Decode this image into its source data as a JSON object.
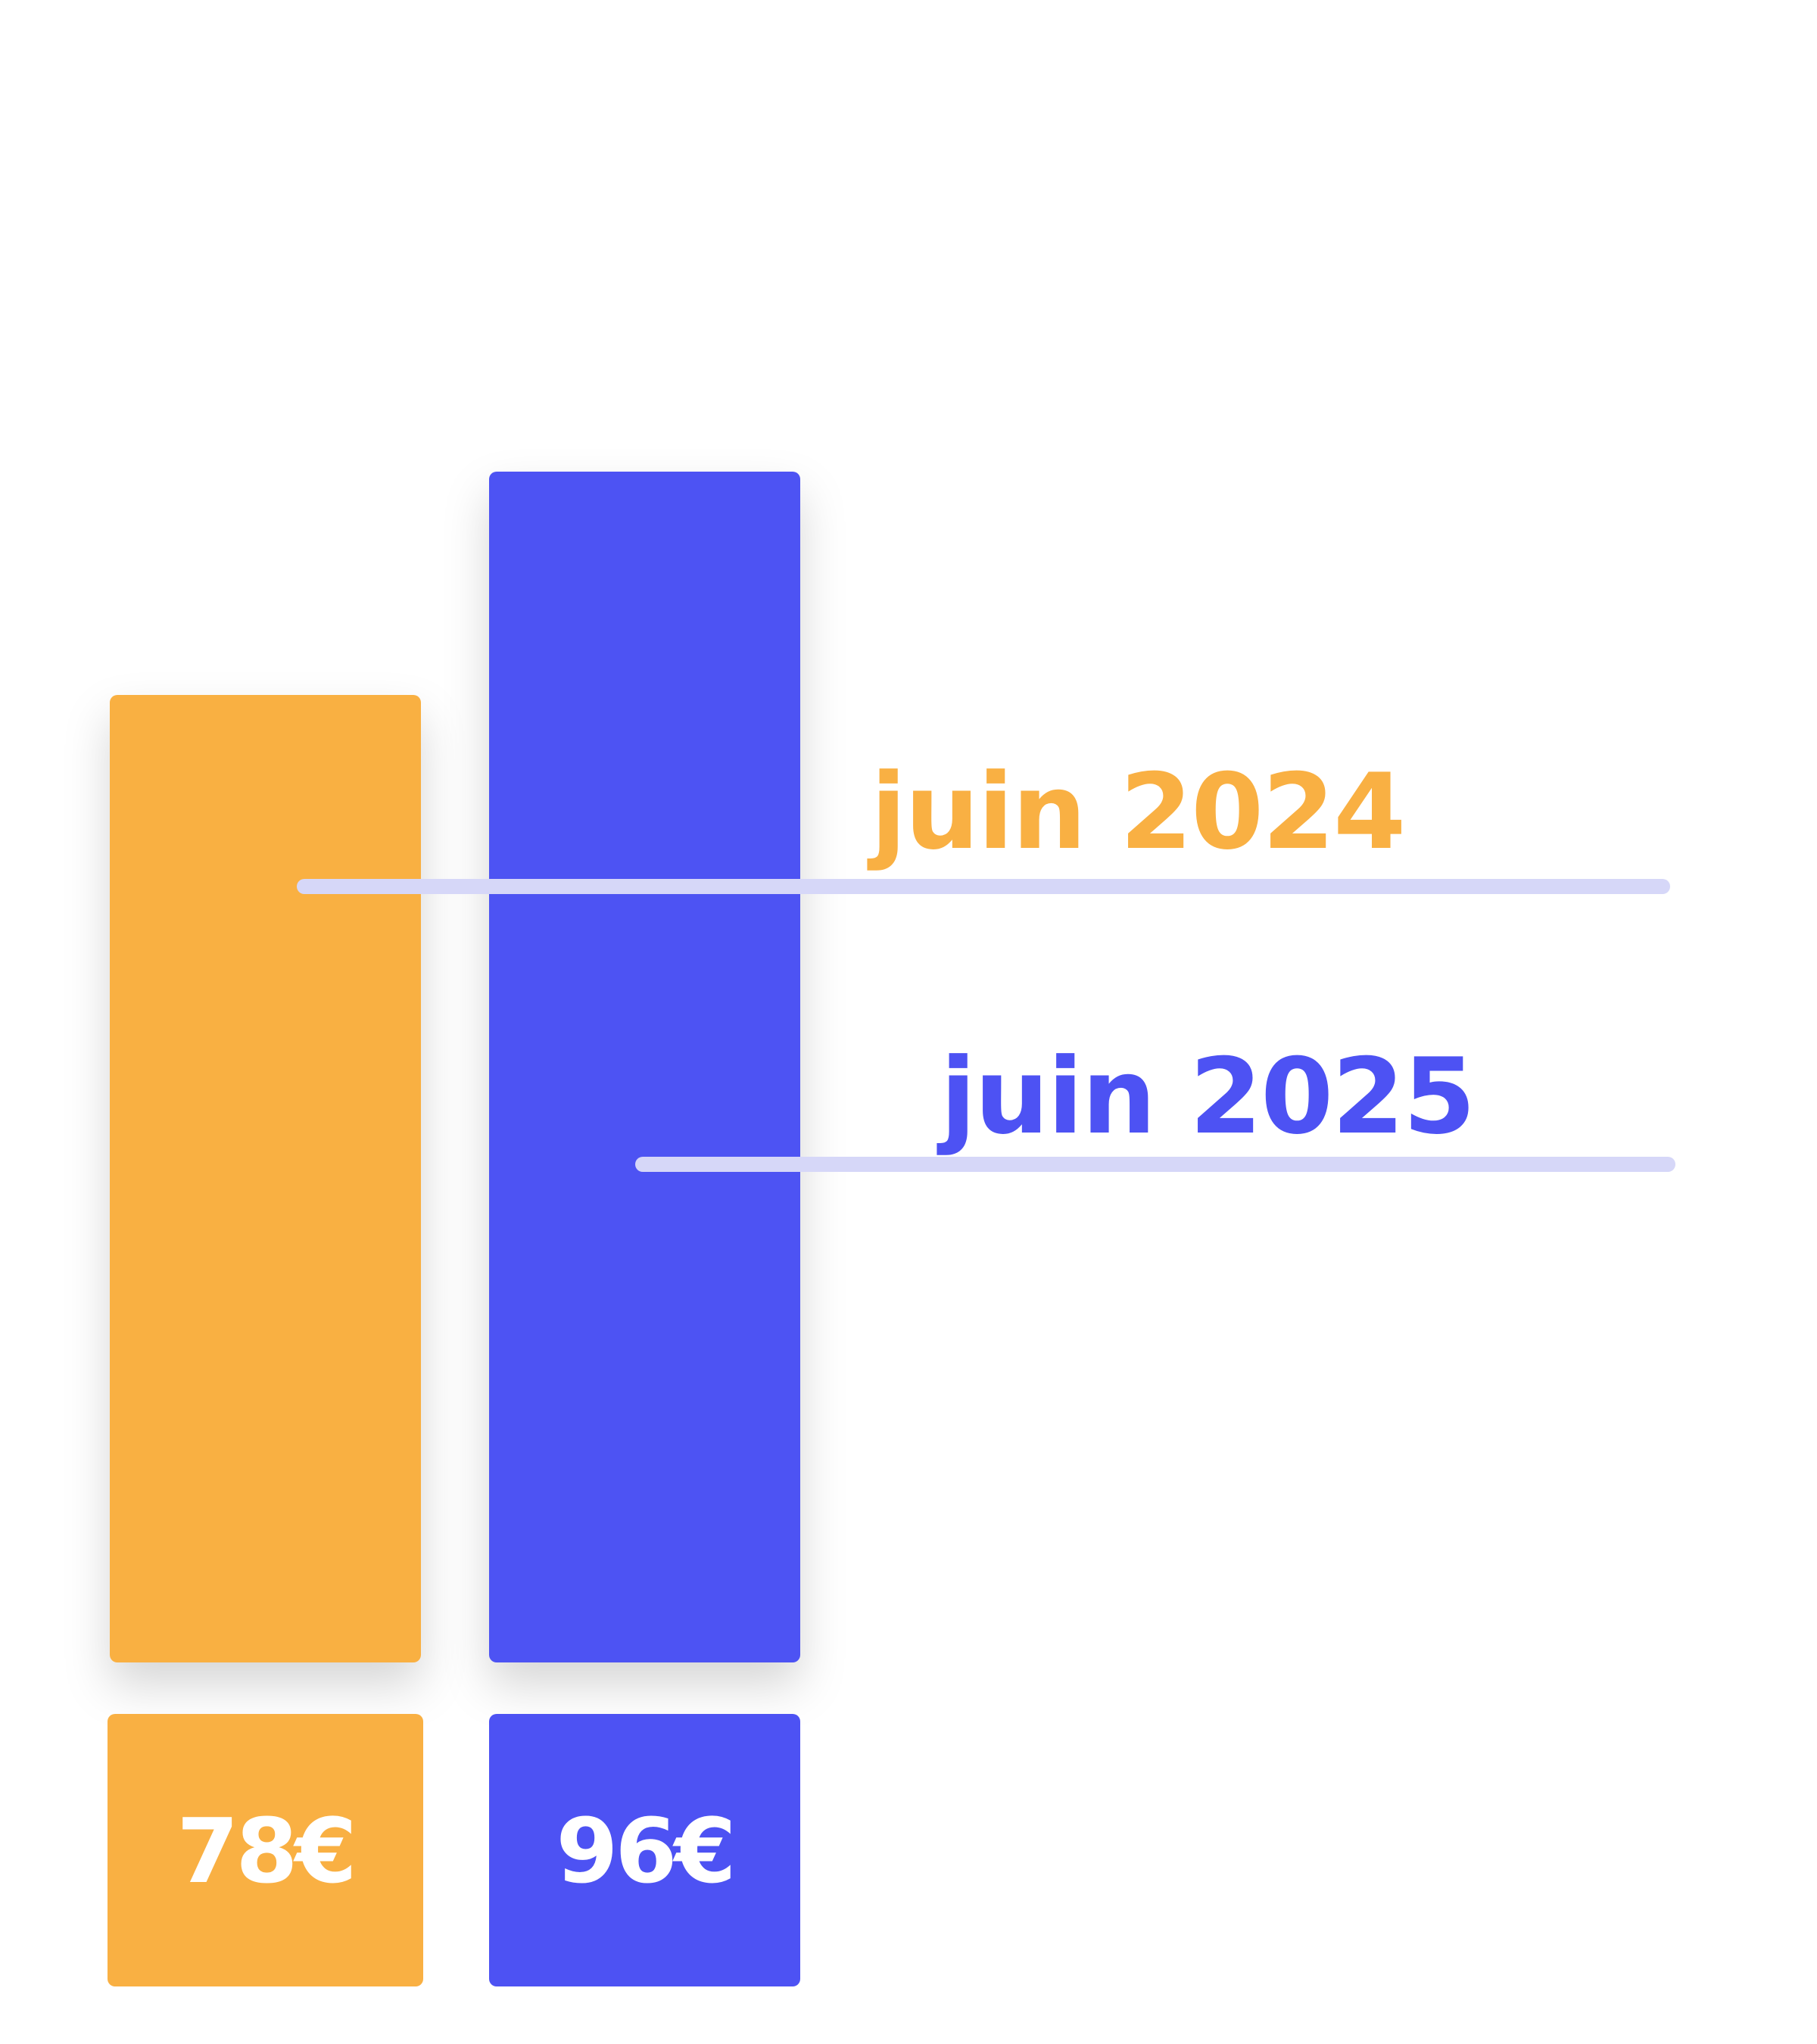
{
  "chart_data": {
    "type": "bar",
    "categories": [
      "juin 2024",
      "juin 2025"
    ],
    "values": [
      78,
      96
    ],
    "value_labels": [
      "78€",
      "96€"
    ],
    "colors": [
      "#f9b043",
      "#4d52f3"
    ],
    "line_color": "#d6d7f8"
  }
}
